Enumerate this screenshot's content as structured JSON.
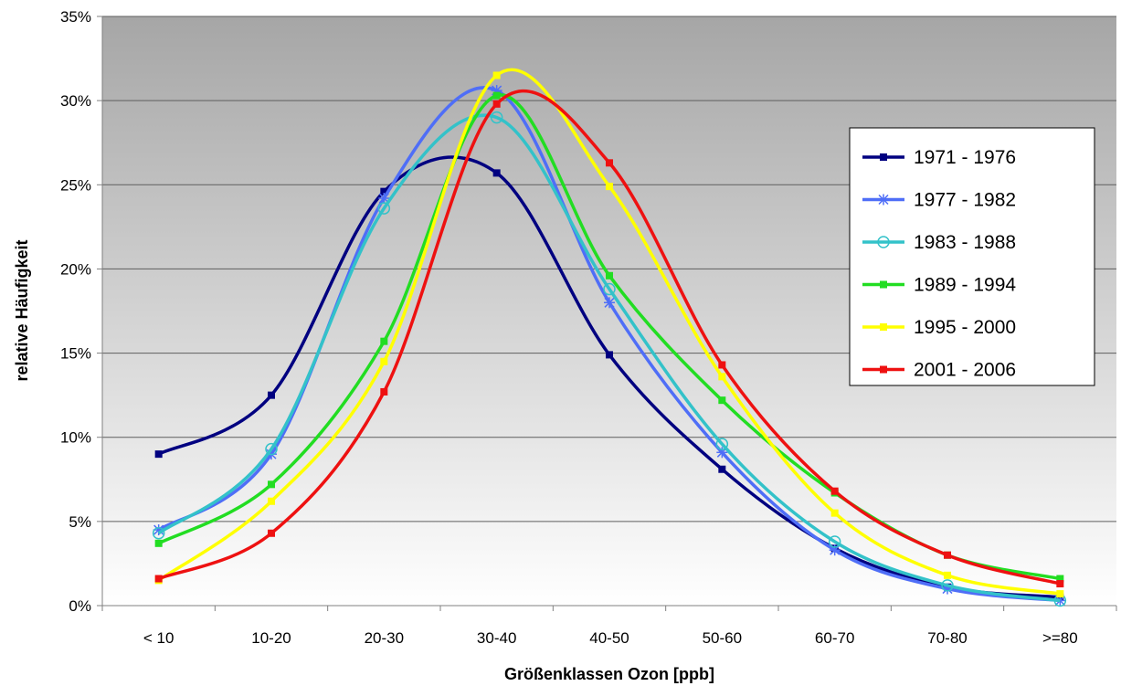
{
  "chart_data": {
    "type": "line",
    "title": "",
    "xlabel": "Größenklassen Ozon [ppb]",
    "ylabel": "relative Häufigkeit",
    "categories": [
      "< 10",
      "10-20",
      "20-30",
      "30-40",
      "40-50",
      "50-60",
      "60-70",
      "70-80",
      ">=80"
    ],
    "yticks": [
      "0%",
      "5%",
      "10%",
      "15%",
      "20%",
      "25%",
      "30%",
      "35%"
    ],
    "ylim": [
      0,
      35
    ],
    "grid": "horizontal",
    "legend_position": "right",
    "background": "gradient grey-to-white",
    "series": [
      {
        "name": "1971 - 1976",
        "color": "#000080",
        "marker": "square",
        "values": [
          9.0,
          12.5,
          24.6,
          25.7,
          14.9,
          8.1,
          3.4,
          1.1,
          0.5
        ]
      },
      {
        "name": "1977 - 1982",
        "color": "#4F6EF7",
        "marker": "star",
        "values": [
          4.5,
          9.0,
          24.2,
          30.6,
          18.0,
          9.1,
          3.3,
          1.0,
          0.3
        ]
      },
      {
        "name": "1983 - 1988",
        "color": "#33C2C9",
        "marker": "circle",
        "values": [
          4.3,
          9.3,
          23.6,
          29.0,
          18.8,
          9.6,
          3.8,
          1.2,
          0.3
        ]
      },
      {
        "name": "1989 - 1994",
        "color": "#22DD22",
        "marker": "square",
        "values": [
          3.7,
          7.2,
          15.7,
          30.3,
          19.6,
          12.2,
          6.7,
          3.0,
          1.6
        ]
      },
      {
        "name": "1995 - 2000",
        "color": "#FFFF00",
        "marker": "square",
        "values": [
          1.5,
          6.2,
          14.5,
          31.5,
          24.9,
          13.6,
          5.5,
          1.8,
          0.7
        ]
      },
      {
        "name": "2001 - 2006",
        "color": "#EE1111",
        "marker": "square",
        "values": [
          1.6,
          4.3,
          12.7,
          29.8,
          26.3,
          14.3,
          6.8,
          3.0,
          1.3
        ]
      }
    ]
  }
}
